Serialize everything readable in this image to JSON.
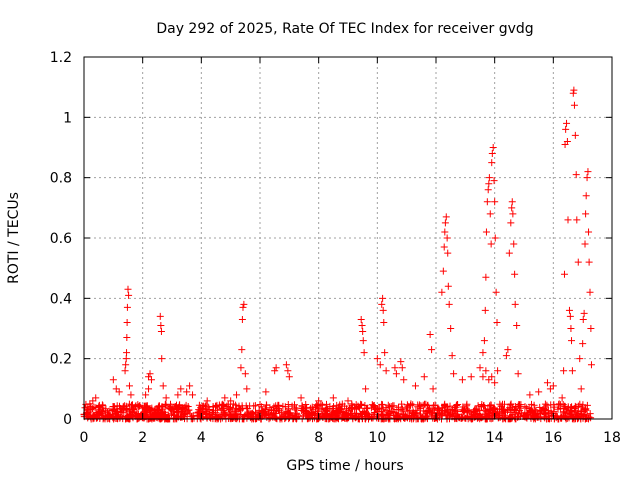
{
  "chart_data": {
    "type": "scatter",
    "title": "Day 292 of 2025, Rate Of TEC Index for receiver gvdg",
    "xlabel": "GPS time / hours",
    "ylabel": "ROTI / TECUs",
    "xlim": [
      0,
      18
    ],
    "ylim": [
      0,
      1.2
    ],
    "xticks": [
      0,
      2,
      4,
      6,
      8,
      10,
      12,
      14,
      16,
      18
    ],
    "xtick_labels": [
      "0",
      "2",
      "4",
      "6",
      "8",
      "10",
      "12",
      "14",
      "16",
      "18"
    ],
    "yticks": [
      0,
      0.2,
      0.4,
      0.6,
      0.8,
      1.0,
      1.2
    ],
    "ytick_labels": [
      "0",
      "0.2",
      "0.4",
      "0.6",
      "0.8",
      "1",
      "1.2"
    ],
    "grid": true,
    "marker": "+",
    "color": "#ff0000",
    "background_band": {
      "x_range": [
        0,
        17.3
      ],
      "y_range": [
        0,
        0.05
      ],
      "density": "dense"
    },
    "points": [
      [
        0.1,
        0.02
      ],
      [
        0.2,
        0.05
      ],
      [
        0.3,
        0.06
      ],
      [
        0.4,
        0.07
      ],
      [
        0.5,
        0.04
      ],
      [
        1.0,
        0.13
      ],
      [
        1.1,
        0.1
      ],
      [
        1.2,
        0.09
      ],
      [
        1.4,
        0.16
      ],
      [
        1.42,
        0.18
      ],
      [
        1.44,
        0.2
      ],
      [
        1.45,
        0.22
      ],
      [
        1.46,
        0.27
      ],
      [
        1.47,
        0.32
      ],
      [
        1.48,
        0.37
      ],
      [
        1.5,
        0.43
      ],
      [
        1.52,
        0.41
      ],
      [
        1.55,
        0.11
      ],
      [
        1.6,
        0.08
      ],
      [
        2.1,
        0.08
      ],
      [
        2.2,
        0.1
      ],
      [
        2.2,
        0.14
      ],
      [
        2.25,
        0.15
      ],
      [
        2.3,
        0.13
      ],
      [
        2.6,
        0.34
      ],
      [
        2.62,
        0.31
      ],
      [
        2.64,
        0.29
      ],
      [
        2.65,
        0.2
      ],
      [
        2.7,
        0.11
      ],
      [
        2.8,
        0.07
      ],
      [
        3.2,
        0.08
      ],
      [
        3.3,
        0.1
      ],
      [
        3.5,
        0.09
      ],
      [
        3.6,
        0.11
      ],
      [
        3.7,
        0.08
      ],
      [
        4.2,
        0.06
      ],
      [
        4.8,
        0.07
      ],
      [
        5.0,
        0.06
      ],
      [
        5.2,
        0.08
      ],
      [
        5.35,
        0.17
      ],
      [
        5.38,
        0.23
      ],
      [
        5.4,
        0.33
      ],
      [
        5.42,
        0.37
      ],
      [
        5.45,
        0.38
      ],
      [
        5.5,
        0.15
      ],
      [
        5.55,
        0.1
      ],
      [
        6.2,
        0.09
      ],
      [
        6.5,
        0.16
      ],
      [
        6.55,
        0.17
      ],
      [
        6.9,
        0.18
      ],
      [
        6.95,
        0.16
      ],
      [
        7.0,
        0.14
      ],
      [
        7.4,
        0.07
      ],
      [
        8.0,
        0.06
      ],
      [
        8.5,
        0.07
      ],
      [
        9.0,
        0.06
      ],
      [
        9.45,
        0.33
      ],
      [
        9.48,
        0.31
      ],
      [
        9.5,
        0.29
      ],
      [
        9.52,
        0.26
      ],
      [
        9.55,
        0.22
      ],
      [
        9.6,
        0.1
      ],
      [
        10.0,
        0.2
      ],
      [
        10.1,
        0.18
      ],
      [
        10.15,
        0.38
      ],
      [
        10.18,
        0.4
      ],
      [
        10.2,
        0.36
      ],
      [
        10.22,
        0.32
      ],
      [
        10.25,
        0.22
      ],
      [
        10.3,
        0.16
      ],
      [
        10.6,
        0.17
      ],
      [
        10.65,
        0.15
      ],
      [
        10.8,
        0.19
      ],
      [
        10.85,
        0.17
      ],
      [
        10.9,
        0.13
      ],
      [
        11.3,
        0.11
      ],
      [
        11.6,
        0.14
      ],
      [
        11.8,
        0.28
      ],
      [
        11.85,
        0.23
      ],
      [
        11.9,
        0.1
      ],
      [
        12.2,
        0.42
      ],
      [
        12.25,
        0.49
      ],
      [
        12.28,
        0.57
      ],
      [
        12.3,
        0.62
      ],
      [
        12.32,
        0.65
      ],
      [
        12.35,
        0.67
      ],
      [
        12.38,
        0.6
      ],
      [
        12.4,
        0.55
      ],
      [
        12.42,
        0.44
      ],
      [
        12.45,
        0.38
      ],
      [
        12.5,
        0.3
      ],
      [
        12.55,
        0.21
      ],
      [
        12.6,
        0.15
      ],
      [
        12.9,
        0.13
      ],
      [
        13.2,
        0.14
      ],
      [
        13.5,
        0.17
      ],
      [
        13.6,
        0.22
      ],
      [
        13.65,
        0.26
      ],
      [
        13.68,
        0.36
      ],
      [
        13.7,
        0.47
      ],
      [
        13.72,
        0.62
      ],
      [
        13.75,
        0.72
      ],
      [
        13.78,
        0.76
      ],
      [
        13.8,
        0.78
      ],
      [
        13.82,
        0.8
      ],
      [
        13.85,
        0.68
      ],
      [
        13.88,
        0.58
      ],
      [
        13.9,
        0.85
      ],
      [
        13.92,
        0.88
      ],
      [
        13.95,
        0.9
      ],
      [
        13.98,
        0.79
      ],
      [
        14.0,
        0.72
      ],
      [
        14.02,
        0.6
      ],
      [
        14.05,
        0.42
      ],
      [
        14.08,
        0.32
      ],
      [
        14.1,
        0.16
      ],
      [
        13.6,
        0.14
      ],
      [
        13.7,
        0.16
      ],
      [
        13.8,
        0.13
      ],
      [
        13.9,
        0.14
      ],
      [
        14.0,
        0.12
      ],
      [
        14.4,
        0.21
      ],
      [
        14.45,
        0.23
      ],
      [
        14.5,
        0.55
      ],
      [
        14.55,
        0.65
      ],
      [
        14.58,
        0.7
      ],
      [
        14.6,
        0.72
      ],
      [
        14.62,
        0.68
      ],
      [
        14.65,
        0.58
      ],
      [
        14.68,
        0.48
      ],
      [
        14.7,
        0.38
      ],
      [
        14.75,
        0.31
      ],
      [
        14.8,
        0.15
      ],
      [
        15.2,
        0.08
      ],
      [
        15.5,
        0.09
      ],
      [
        15.8,
        0.12
      ],
      [
        15.9,
        0.1
      ],
      [
        16.0,
        0.11
      ],
      [
        16.2,
        0.05
      ],
      [
        16.3,
        0.07
      ],
      [
        16.35,
        0.16
      ],
      [
        16.38,
        0.48
      ],
      [
        16.4,
        0.91
      ],
      [
        16.42,
        0.96
      ],
      [
        16.45,
        0.98
      ],
      [
        16.48,
        0.92
      ],
      [
        16.5,
        0.66
      ],
      [
        16.55,
        0.36
      ],
      [
        16.58,
        0.34
      ],
      [
        16.6,
        0.3
      ],
      [
        16.62,
        0.26
      ],
      [
        16.65,
        0.16
      ],
      [
        16.68,
        1.08
      ],
      [
        16.7,
        1.09
      ],
      [
        16.72,
        1.04
      ],
      [
        16.75,
        0.94
      ],
      [
        16.78,
        0.81
      ],
      [
        16.8,
        0.66
      ],
      [
        16.85,
        0.52
      ],
      [
        16.9,
        0.2
      ],
      [
        16.95,
        0.1
      ],
      [
        17.0,
        0.25
      ],
      [
        17.02,
        0.33
      ],
      [
        17.05,
        0.35
      ],
      [
        17.08,
        0.58
      ],
      [
        17.1,
        0.68
      ],
      [
        17.12,
        0.74
      ],
      [
        17.15,
        0.8
      ],
      [
        17.18,
        0.82
      ],
      [
        17.2,
        0.62
      ],
      [
        17.22,
        0.52
      ],
      [
        17.25,
        0.42
      ],
      [
        17.28,
        0.3
      ],
      [
        17.3,
        0.18
      ]
    ]
  }
}
